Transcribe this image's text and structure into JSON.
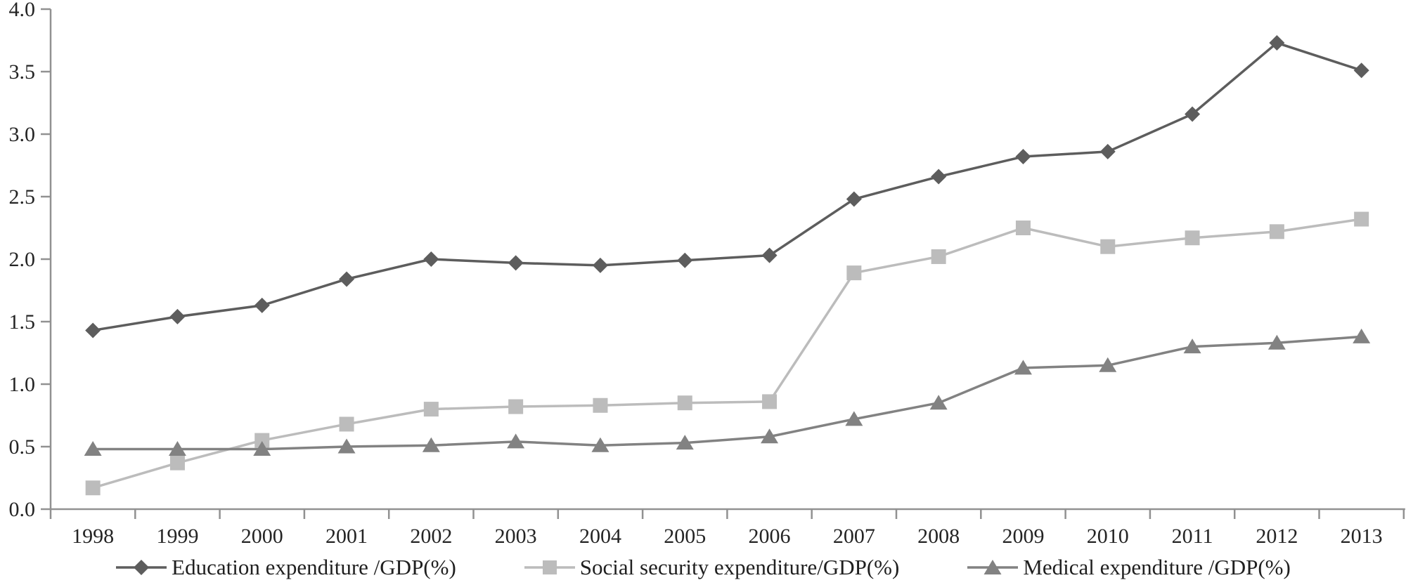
{
  "chart_data": {
    "type": "line",
    "title": "",
    "xlabel": "",
    "ylabel": "",
    "grid": false,
    "legend_position": "bottom",
    "ylim": [
      0.0,
      4.0
    ],
    "y_tick_step": 0.5,
    "y_tick_labels": [
      "0.0",
      "0.5",
      "1.0",
      "1.5",
      "2.0",
      "2.5",
      "3.0",
      "3.5",
      "4.0"
    ],
    "categories": [
      "1998",
      "1999",
      "2000",
      "2001",
      "2002",
      "2003",
      "2004",
      "2005",
      "2006",
      "2007",
      "2008",
      "2009",
      "2010",
      "2011",
      "2012",
      "2013"
    ],
    "series": [
      {
        "name": "Education expenditure /GDP(%)",
        "marker": "diamond",
        "color": "#5d5d5d",
        "values": [
          1.43,
          1.54,
          1.63,
          1.84,
          2.0,
          1.97,
          1.95,
          1.99,
          2.03,
          2.48,
          2.66,
          2.82,
          2.86,
          3.16,
          3.73,
          3.51
        ]
      },
      {
        "name": "Social security expenditure/GDP(%)",
        "marker": "square",
        "color": "#bcbcbc",
        "values": [
          0.17,
          0.37,
          0.55,
          0.68,
          0.8,
          0.82,
          0.83,
          0.85,
          0.86,
          1.89,
          2.02,
          2.25,
          2.1,
          2.17,
          2.22,
          2.32
        ]
      },
      {
        "name": "Medical expenditure /GDP(%)",
        "marker": "triangle",
        "color": "#828282",
        "values": [
          0.48,
          0.48,
          0.48,
          0.5,
          0.51,
          0.54,
          0.51,
          0.53,
          0.58,
          0.72,
          0.85,
          1.13,
          1.15,
          1.3,
          1.33,
          1.38
        ]
      }
    ],
    "axis_color": "#919191",
    "text_color": "#242424"
  }
}
